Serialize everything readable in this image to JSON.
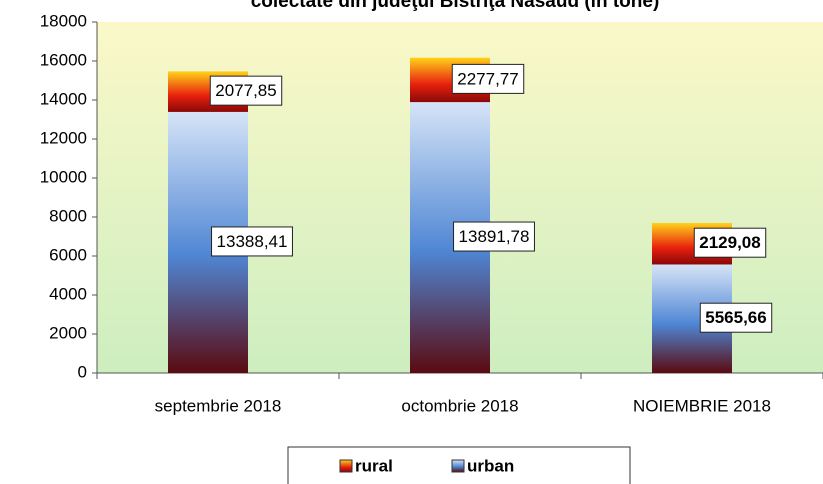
{
  "chart_data": {
    "type": "stacked_bar",
    "title": "colectate din judeţul Bistriţa Năsăud (în tone)",
    "categories": [
      "septembrie 2018",
      "octombrie 2018",
      "NOIEMBRIE 2018"
    ],
    "series": [
      {
        "name": "urban",
        "color": "#7aa7e0",
        "values": [
          13388.41,
          13891.78,
          5565.66
        ],
        "value_labels": [
          "13388,41",
          "13891,78",
          "5565,66"
        ]
      },
      {
        "name": "rural",
        "color": "#e83a10",
        "values": [
          2077.85,
          2277.77,
          2129.08
        ],
        "value_labels": [
          "2077,85",
          "2277,77",
          "2129,08"
        ]
      }
    ],
    "ylim": [
      0,
      18000
    ],
    "yticks": [
      0,
      2000,
      4000,
      6000,
      8000,
      10000,
      12000,
      14000,
      16000,
      18000
    ],
    "legend": "bottom"
  }
}
